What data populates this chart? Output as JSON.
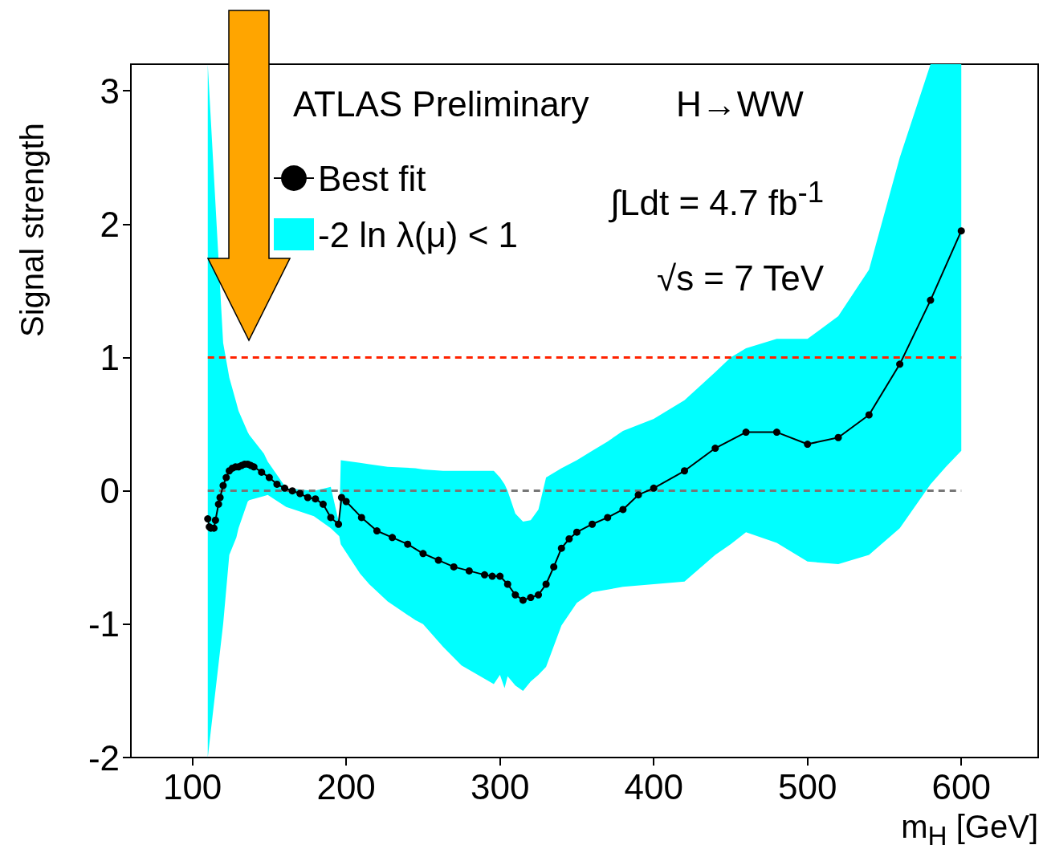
{
  "chart_data": {
    "type": "line",
    "xlabel": "m$_{H}$ [GeV]",
    "ylabel": "Signal strength",
    "annotations": [
      "ATLAS Preliminary",
      "H→WW",
      "∫Ldt = 4.7 fb$^{-1}$",
      "√s = 7 TeV"
    ],
    "xlim": [
      60,
      650
    ],
    "xticks": [
      100,
      200,
      300,
      400,
      500,
      600
    ],
    "ylim": [
      -2,
      3.2
    ],
    "yticks": [
      -2,
      -1,
      0,
      1,
      2,
      3
    ],
    "legend": "top left",
    "grid": false,
    "series": [
      {
        "name": "-2 ln λ(μ) < 1",
        "type": "area",
        "color": "#00ffff",
        "x": [
          110,
          120,
          124,
          128.6,
          130,
          136,
          137,
          146.5,
          149,
          161,
          179,
          190,
          195.5,
          196.5,
          209,
          215,
          227,
          245,
          250,
          263,
          275,
          296,
          300,
          303,
          305,
          310,
          315,
          320,
          325,
          330,
          340,
          350,
          360,
          370,
          380,
          400,
          420,
          440,
          450,
          460,
          480,
          500,
          520,
          540,
          560,
          580,
          590,
          600
        ],
        "lower": [
          -2,
          -1.0,
          -0.48,
          -0.35,
          -0.28,
          -0.08,
          -0.07,
          -0.04,
          -0.03,
          -0.12,
          -0.19,
          -0.28,
          -0.34,
          -0.4,
          -0.62,
          -0.7,
          -0.83,
          -0.97,
          -1.0,
          -1.17,
          -1.31,
          -1.45,
          -1.38,
          -1.48,
          -1.39,
          -1.46,
          -1.5,
          -1.43,
          -1.38,
          -1.32,
          -1.01,
          -0.84,
          -0.76,
          -0.74,
          -0.72,
          -0.7,
          -0.68,
          -0.48,
          -0.4,
          -0.31,
          -0.39,
          -0.53,
          -0.55,
          -0.48,
          -0.28,
          0.05,
          0.18,
          0.3
        ],
        "upper": [
          3.2,
          1.11,
          0.85,
          0.66,
          0.6,
          0.44,
          0.42,
          0.28,
          0.22,
          0.02,
          0.0,
          0.03,
          -0.25,
          0.23,
          0.21,
          0.2,
          0.18,
          0.17,
          0.16,
          0.15,
          0.15,
          0.15,
          0.1,
          0.05,
          0.0,
          -0.17,
          -0.23,
          -0.22,
          -0.14,
          0.1,
          0.17,
          0.23,
          0.3,
          0.37,
          0.45,
          0.54,
          0.68,
          0.89,
          1.0,
          1.07,
          1.14,
          1.14,
          1.31,
          1.66,
          2.5,
          3.2,
          3.2,
          3.2
        ],
        "values": [
          null,
          null,
          null,
          null,
          null,
          null,
          null,
          null,
          null,
          null,
          null,
          null,
          null,
          null,
          null,
          null,
          null,
          null,
          null,
          null,
          null,
          null,
          null,
          null,
          null,
          null,
          null,
          null,
          null,
          null,
          null,
          null,
          null,
          null,
          null,
          null,
          null,
          null,
          null,
          null,
          null,
          null,
          null,
          null,
          null,
          null,
          null,
          null
        ]
      },
      {
        "name": "Best fit",
        "color": "#000000",
        "marker": "circle",
        "x": [
          110,
          111,
          112,
          114,
          115,
          117,
          118,
          120,
          122,
          124,
          126,
          128,
          130,
          132,
          134,
          136,
          138,
          140,
          145,
          150,
          155,
          160,
          165,
          170,
          175,
          180,
          185,
          190,
          195,
          197,
          200,
          210,
          220,
          230,
          240,
          250,
          260,
          270,
          280,
          290,
          295,
          300,
          305,
          310,
          315,
          320,
          325,
          330,
          335,
          340,
          345,
          350,
          360,
          370,
          380,
          390,
          400,
          420,
          440,
          460,
          480,
          500,
          520,
          540,
          560,
          580,
          600
        ],
        "values": [
          -0.21,
          -0.27,
          -0.28,
          -0.28,
          -0.22,
          -0.1,
          -0.05,
          0.04,
          0.1,
          0.15,
          0.17,
          0.18,
          0.18,
          0.19,
          0.2,
          0.2,
          0.19,
          0.18,
          0.14,
          0.1,
          0.05,
          0.02,
          0,
          -0.02,
          -0.05,
          -0.06,
          -0.1,
          -0.2,
          -0.25,
          -0.05,
          -0.08,
          -0.2,
          -0.3,
          -0.35,
          -0.4,
          -0.47,
          -0.52,
          -0.57,
          -0.6,
          -0.63,
          -0.64,
          -0.64,
          -0.7,
          -0.78,
          -0.82,
          -0.8,
          -0.78,
          -0.7,
          -0.57,
          -0.43,
          -0.36,
          -0.31,
          -0.25,
          -0.2,
          -0.14,
          -0.03,
          0.02,
          0.15,
          0.32,
          0.44,
          0.44,
          0.35,
          0.4,
          0.57,
          0.95,
          1.43,
          1.95
        ]
      }
    ],
    "ref_lines": [
      {
        "axis": "y",
        "value": 1,
        "color": "#ff2200",
        "line_style": "dashed"
      },
      {
        "axis": "y",
        "value": 0,
        "color": "#777777",
        "line_style": "dashed"
      }
    ]
  }
}
